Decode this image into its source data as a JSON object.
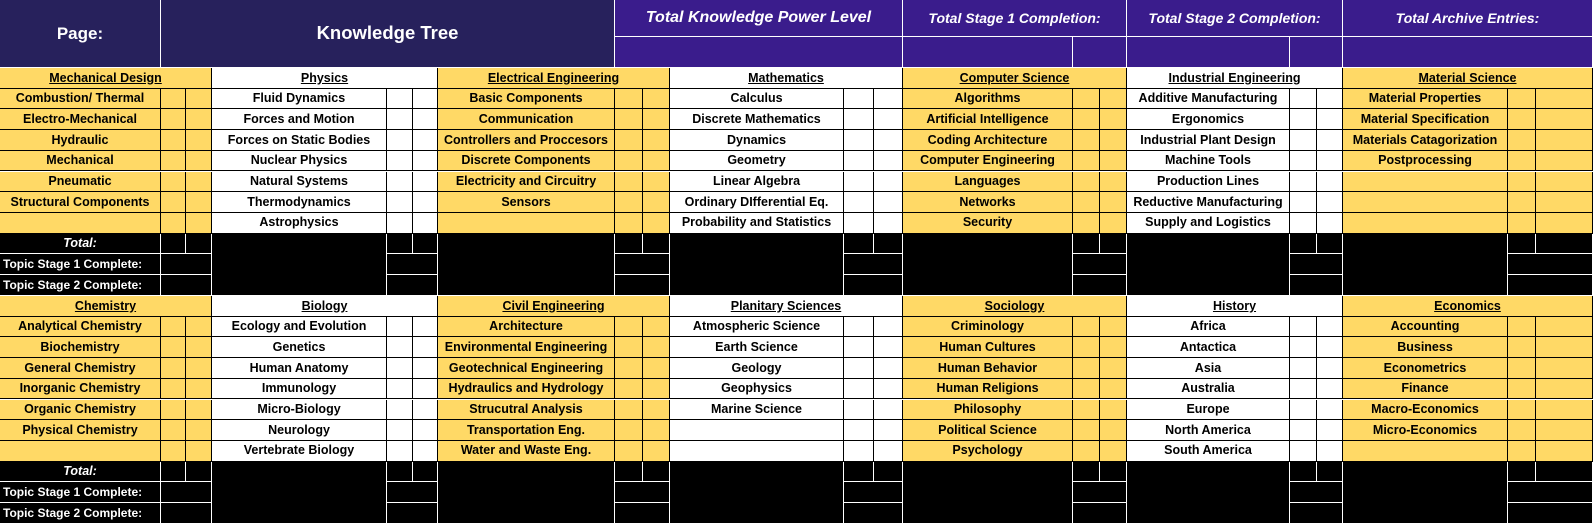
{
  "header": {
    "page_label": "Page:",
    "page_title": "Knowledge Tree",
    "total_power": "Total Knowledge Power Level",
    "stage1": "Total Stage 1 Completion:",
    "stage2": "Total Stage 2 Completion:",
    "archive": "Total Archive Entries:"
  },
  "labels": {
    "total": "Total:",
    "stage1": "Topic Stage 1 Complete:",
    "stage2": "Topic Stage 2 Complete:"
  },
  "colors": {
    "gold": "#ffd966",
    "navy": "#27215c",
    "purple": "#3a1c8c",
    "black": "#000000"
  },
  "sections": [
    {
      "columns": [
        {
          "header": "Mechanical Design",
          "items": [
            "Combustion/ Thermal",
            "Electro-Mechanical",
            "Hydraulic",
            "Mechanical",
            "Pneumatic",
            "Structural Components",
            ""
          ]
        },
        {
          "header": "Physics",
          "items": [
            "Fluid Dynamics",
            "Forces and Motion",
            "Forces on Static Bodies",
            "Nuclear Physics",
            "Natural Systems",
            "Thermodynamics",
            "Astrophysics"
          ]
        },
        {
          "header": "Electrical Engineering",
          "items": [
            "Basic Components",
            "Communication",
            "Controllers and Proccesors",
            "Discrete Components",
            "Electricity and Circuitry",
            "Sensors",
            ""
          ]
        },
        {
          "header": "Mathematics",
          "items": [
            "Calculus",
            "Discrete Mathematics",
            "Dynamics",
            "Geometry",
            "Linear Algebra",
            "Ordinary DIfferential Eq.",
            "Probability and Statistics"
          ]
        },
        {
          "header": "Computer Science",
          "items": [
            "Algorithms",
            "Artificial Intelligence",
            "Coding Architecture",
            "Computer Engineering",
            "Languages",
            "Networks",
            "Security"
          ]
        },
        {
          "header": "Industrial Engineering",
          "items": [
            "Additive Manufacturing",
            "Ergonomics",
            "Industrial Plant Design",
            "Machine Tools",
            "Production Lines",
            "Reductive Manufacturing",
            "Supply and Logistics"
          ]
        },
        {
          "header": "Material Science",
          "items": [
            "Material Properties",
            "Material Specification",
            "Materials Catagorization",
            "Postprocessing",
            "",
            "",
            ""
          ]
        }
      ]
    },
    {
      "columns": [
        {
          "header": "Chemistry",
          "items": [
            "Analytical Chemistry",
            "Biochemistry",
            "General Chemistry",
            "Inorganic Chemistry",
            "Organic Chemistry",
            "Physical Chemistry",
            ""
          ]
        },
        {
          "header": "Biology",
          "items": [
            "Ecology and Evolution",
            "Genetics",
            "Human Anatomy",
            "Immunology",
            "Micro-Biology",
            "Neurology",
            "Vertebrate Biology"
          ]
        },
        {
          "header": "Civil Engineering",
          "items": [
            "Architecture",
            "Environmental Engineering",
            "Geotechnical Engineering",
            "Hydraulics and Hydrology",
            "Strucutral Analysis",
            "Transportation Eng.",
            "Water and Waste Eng."
          ]
        },
        {
          "header": "Planitary Sciences",
          "items": [
            "Atmospheric Science",
            "Earth Science",
            "Geology",
            "Geophysics",
            "Marine Science",
            "",
            ""
          ]
        },
        {
          "header": "Sociology",
          "items": [
            "Criminology",
            "Human Cultures",
            "Human Behavior",
            "Human Religions",
            "Philosophy",
            "Political Science",
            "Psychology"
          ]
        },
        {
          "header": "History",
          "items": [
            "Africa",
            "Antactica",
            "Asia",
            "Australia",
            "Europe",
            "North America",
            "South America"
          ]
        },
        {
          "header": "Economics",
          "items": [
            "Accounting",
            "Business",
            "Econometrics",
            "Finance",
            "Macro-Economics",
            "Micro-Economics",
            ""
          ]
        }
      ]
    }
  ]
}
